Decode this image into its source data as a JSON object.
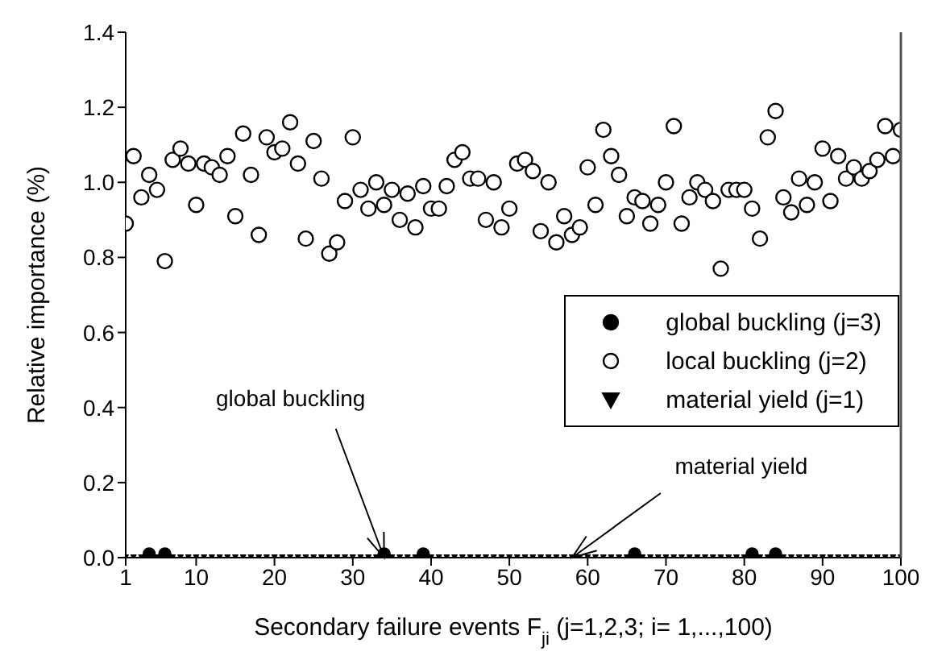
{
  "chart_data": {
    "type": "scatter",
    "xlabel": "Secondary failure events F$_{ji}$ (j=1,2,3; i= 1,...,100)",
    "ylabel": "Relative importance (%)",
    "x": [
      1,
      2,
      3,
      4,
      5,
      6,
      7,
      8,
      9,
      10,
      11,
      12,
      13,
      14,
      15,
      16,
      17,
      18,
      19,
      20,
      21,
      22,
      23,
      24,
      25,
      26,
      27,
      28,
      29,
      30,
      31,
      32,
      33,
      34,
      35,
      36,
      37,
      38,
      39,
      40,
      41,
      42,
      43,
      44,
      45,
      46,
      47,
      48,
      49,
      50,
      51,
      52,
      53,
      54,
      55,
      56,
      57,
      58,
      59,
      60,
      61,
      62,
      63,
      64,
      65,
      66,
      67,
      68,
      69,
      70,
      71,
      72,
      73,
      74,
      75,
      76,
      77,
      78,
      79,
      80,
      81,
      82,
      83,
      84,
      85,
      86,
      87,
      88,
      89,
      90,
      91,
      92,
      93,
      94,
      95,
      96,
      97,
      98,
      99,
      100
    ],
    "series": [
      {
        "name": "global buckling (j=3)",
        "color": "#000000",
        "marker": "circle",
        "values": [
          null,
          null,
          null,
          0.01,
          null,
          0.01,
          null,
          null,
          null,
          null,
          null,
          null,
          null,
          null,
          null,
          null,
          null,
          null,
          null,
          null,
          null,
          null,
          null,
          null,
          null,
          null,
          null,
          null,
          null,
          null,
          null,
          null,
          null,
          0.01,
          null,
          null,
          null,
          null,
          0.01,
          null,
          null,
          null,
          null,
          null,
          null,
          null,
          null,
          null,
          null,
          null,
          null,
          null,
          null,
          null,
          null,
          null,
          null,
          null,
          null,
          null,
          null,
          null,
          null,
          null,
          null,
          0.01,
          null,
          null,
          null,
          null,
          null,
          null,
          null,
          null,
          null,
          null,
          null,
          null,
          null,
          null,
          0.01,
          null,
          null,
          0.01,
          null,
          null,
          null,
          null,
          null,
          null,
          null,
          null,
          null,
          null,
          null,
          null,
          null,
          null,
          null,
          null
        ]
      },
      {
        "name": "local buckling (j=2)",
        "color": "#ffffff",
        "marker": "circle",
        "values": [
          0.89,
          1.07,
          0.96,
          1.02,
          0.98,
          0.79,
          1.06,
          1.09,
          1.05,
          0.94,
          1.05,
          1.04,
          1.02,
          1.07,
          0.91,
          1.13,
          1.02,
          0.86,
          1.12,
          1.08,
          1.09,
          1.16,
          1.05,
          0.85,
          1.11,
          1.01,
          0.81,
          0.84,
          0.95,
          1.12,
          0.98,
          0.93,
          1.0,
          0.94,
          0.98,
          0.9,
          0.97,
          0.88,
          0.99,
          0.93,
          0.93,
          0.99,
          1.06,
          1.08,
          1.01,
          1.01,
          0.9,
          1.0,
          0.88,
          0.93,
          1.05,
          1.06,
          1.03,
          0.87,
          1.0,
          0.84,
          0.91,
          0.86,
          0.88,
          1.04,
          0.94,
          1.14,
          1.07,
          1.02,
          0.91,
          0.96,
          0.95,
          0.89,
          0.94,
          1.0,
          1.15,
          0.89,
          0.96,
          1.0,
          0.98,
          0.95,
          0.77,
          0.98,
          0.98,
          0.98,
          0.93,
          0.85,
          1.12,
          1.19,
          0.96,
          0.92,
          1.01,
          0.94,
          1.0,
          1.09,
          0.95,
          1.07,
          1.01,
          1.04,
          1.01,
          1.03,
          1.06,
          1.15,
          1.07,
          1.14
        ]
      },
      {
        "name": "material yield (j=1)",
        "color": "#000000",
        "marker": "triangle",
        "values": [
          0,
          0,
          0,
          null,
          0,
          null,
          0,
          0,
          0,
          0,
          0,
          0,
          0,
          0,
          0,
          0,
          0,
          0,
          0,
          0,
          0,
          0,
          0,
          0,
          0,
          0,
          0,
          0,
          0,
          0,
          0,
          0,
          0,
          null,
          0,
          0,
          0,
          0,
          null,
          0,
          0,
          0,
          0,
          0,
          0,
          0,
          0,
          0,
          0,
          0,
          0,
          0,
          0,
          0,
          0,
          0,
          0,
          0,
          0,
          0,
          0,
          0,
          0,
          0,
          0,
          null,
          0,
          0,
          0,
          0,
          0,
          0,
          0,
          0,
          0,
          0,
          0,
          0,
          0,
          0,
          null,
          0,
          0,
          null,
          0,
          0,
          0,
          0,
          0,
          0,
          0,
          0,
          0,
          0,
          0,
          0,
          0,
          0,
          0,
          0
        ]
      }
    ],
    "xlim": [
      1,
      100
    ],
    "xticks": [
      1,
      10,
      20,
      30,
      40,
      50,
      60,
      70,
      80,
      90,
      100
    ],
    "ylim": [
      0,
      1.4
    ],
    "yticks": [
      {
        "value": 0,
        "label": "0.0"
      },
      {
        "value": 0.2,
        "label": "0.2"
      },
      {
        "value": 0.4,
        "label": "0.4"
      },
      {
        "value": 0.6,
        "label": "0.6"
      },
      {
        "value": 0.8,
        "label": "0.8"
      },
      {
        "value": 1,
        "label": "1.0"
      },
      {
        "value": 1.2,
        "label": "1.2"
      },
      {
        "value": 1.4,
        "label": "1.4"
      }
    ],
    "annotations": [
      {
        "text": "global buckling",
        "x": 34,
        "y": 0
      },
      {
        "text": "material yield",
        "x": 58,
        "y": 0
      }
    ],
    "grid": false,
    "legend": "right"
  }
}
